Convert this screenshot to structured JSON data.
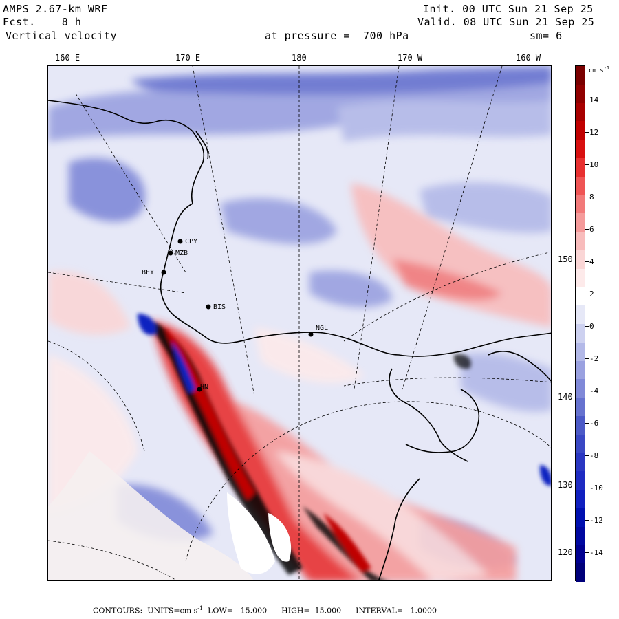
{
  "header": {
    "model": "AMPS 2.67-km WRF",
    "fcst_label": "Fcst.",
    "fcst_value": "8 h",
    "field": "Vertical velocity",
    "level": "at pressure =  700 hPa",
    "init": "Init. 00 UTC Sun 21 Sep 25",
    "valid": "Valid. 08 UTC Sun 21 Sep 25",
    "smoothing": "sm= 6"
  },
  "longitude_labels": [
    "160 E",
    "170 E",
    "180",
    "170 W",
    "160 W"
  ],
  "latitude_labels": [
    "150 W",
    "140 W",
    "130 W",
    "120 W"
  ],
  "stations": [
    "CPY",
    "MZB",
    "BEY",
    "BIS",
    "NGL",
    "HN"
  ],
  "colorbar": {
    "unit": "cm s",
    "unit_exp": "-1",
    "ticks": [
      "14",
      "12",
      "10",
      "8",
      "6",
      "4",
      "2",
      "0",
      "-2",
      "-4",
      "-6",
      "-8",
      "-10",
      "-12",
      "-14"
    ],
    "colors": [
      "#7a0000",
      "#900000",
      "#a80000",
      "#c00000",
      "#d81010",
      "#e83030",
      "#ef5555",
      "#f27a7a",
      "#f59b9b",
      "#f8bcbc",
      "#fad6d6",
      "#fdeaea",
      "#ffffff",
      "#e6e8f7",
      "#cdd1f0",
      "#b3b9e8",
      "#9aa1e0",
      "#8089d8",
      "#6672cf",
      "#4c5ac7",
      "#3a48c4",
      "#2a37c2",
      "#1e2bc2",
      "#1020c0",
      "#0010b0",
      "#0008a0",
      "#000090",
      "#00007a"
    ],
    "accent_positive": "#d81010",
    "accent_negative": "#1020c0"
  },
  "footer": {
    "contours_label": "CONTOURS:",
    "units_label": "UNITS=cm s",
    "units_exp": "-1",
    "low": "LOW=  -15.000",
    "high": "HIGH=  15.000",
    "interval": "INTERVAL=   1.0000"
  }
}
